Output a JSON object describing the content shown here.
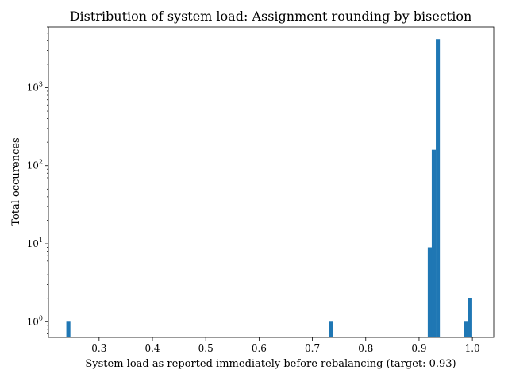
{
  "chart_data": {
    "type": "bar",
    "title": "Distribution of system load: Assignment rounding by bisection",
    "xlabel": "System load as reported immediately before rebalancing (target: 0.93)",
    "ylabel": "Total occurences",
    "xlim": [
      0.205,
      1.04
    ],
    "ylim": [
      0.63,
      6000
    ],
    "yscale": "log",
    "grid": false,
    "bin_width": 0.0076,
    "x_ticks": [
      0.3,
      0.4,
      0.5,
      0.6,
      0.7,
      0.8,
      0.9,
      1.0
    ],
    "x_tick_labels": [
      "0.3",
      "0.4",
      "0.5",
      "0.6",
      "0.7",
      "0.8",
      "0.9",
      "1.0"
    ],
    "y_ticks": [
      1,
      10,
      100,
      1000
    ],
    "y_tick_labels": [
      {
        "base": "10",
        "exp": "0"
      },
      {
        "base": "10",
        "exp": "1"
      },
      {
        "base": "10",
        "exp": "2"
      },
      {
        "base": "10",
        "exp": "3"
      }
    ],
    "series": [
      {
        "x": [
          0.2386,
          0.7309,
          0.9163,
          0.9238,
          0.9314,
          0.9845,
          0.9921
        ],
        "values": [
          1,
          1,
          9,
          160,
          4200,
          1,
          2
        ]
      }
    ]
  }
}
